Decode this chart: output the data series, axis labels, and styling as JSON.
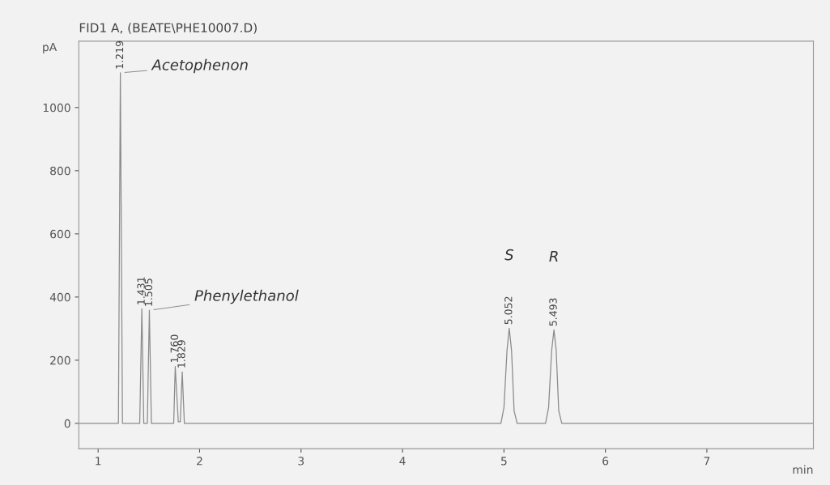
{
  "chart_data": {
    "type": "line",
    "title": "FID1 A, (BEATE\\PHE10007.D)",
    "xlabel": "min",
    "ylabel": "pA",
    "x": [
      0.81,
      1.2,
      1.219,
      1.24,
      1.41,
      1.431,
      1.45,
      1.485,
      1.505,
      1.525,
      1.745,
      1.76,
      1.79,
      1.81,
      1.829,
      1.85,
      4.97,
      5.0,
      5.03,
      5.052,
      5.075,
      5.1,
      5.13,
      5.41,
      5.44,
      5.47,
      5.493,
      5.515,
      5.54,
      5.57,
      8.05
    ],
    "series": [
      {
        "color": "#8a8a8a",
        "values": [
          0,
          0,
          1110,
          0,
          0,
          363,
          0,
          0,
          358,
          0,
          0,
          180,
          5,
          5,
          163,
          0,
          0,
          50,
          230,
          301,
          230,
          40,
          0,
          0,
          50,
          230,
          296,
          230,
          40,
          0,
          0
        ]
      }
    ],
    "annotations": [
      {
        "text": "1.219",
        "x": 1.219,
        "y": 1110
      },
      {
        "text": "1.431",
        "x": 1.431,
        "y": 363
      },
      {
        "text": "1.505",
        "x": 1.505,
        "y": 358
      },
      {
        "text": "1.760",
        "x": 1.76,
        "y": 180
      },
      {
        "text": "1.829",
        "x": 1.829,
        "y": 163
      },
      {
        "text": "5.052",
        "x": 5.052,
        "y": 301
      },
      {
        "text": "5.493",
        "x": 5.493,
        "y": 296
      },
      {
        "text": "Acetophenon",
        "x": 1.219,
        "y": 1110
      },
      {
        "text": "Phenylethanol",
        "x": 1.505,
        "y": 358
      },
      "S",
      "R"
    ],
    "xlim": [
      0.81,
      8.05
    ],
    "xticks": [
      1,
      2,
      3,
      4,
      5,
      6,
      7
    ],
    "ylim": [
      -80,
      1210
    ],
    "yticks": [
      0,
      200,
      400,
      600,
      800,
      1000
    ],
    "grid": false,
    "legend": false,
    "marker": "none",
    "line_style": "solid"
  }
}
